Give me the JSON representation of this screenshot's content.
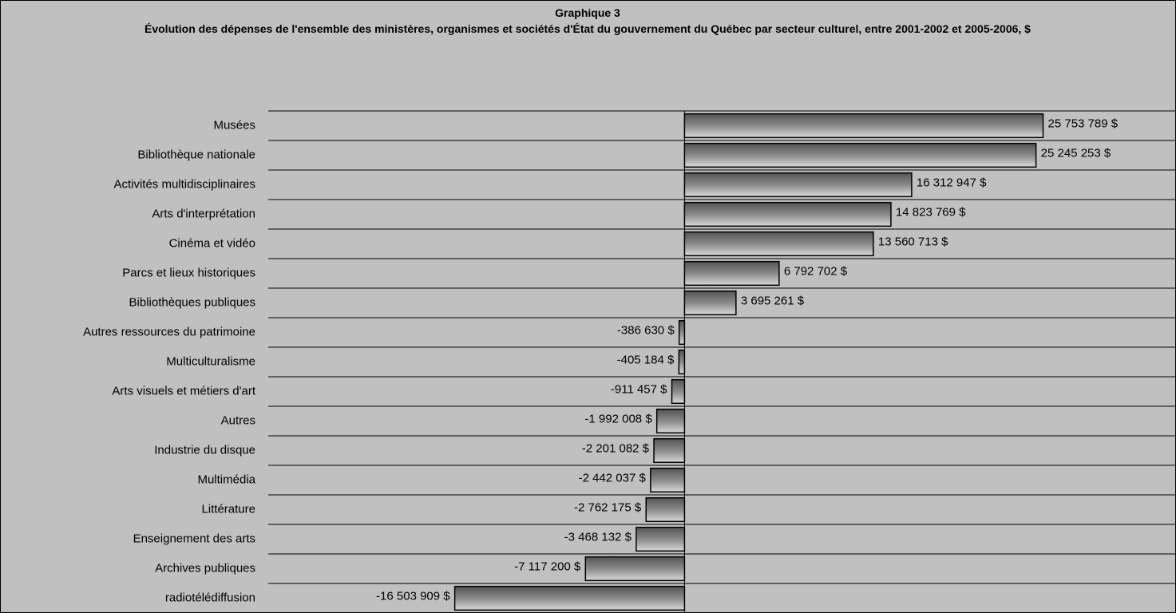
{
  "chart_data": {
    "type": "hbar",
    "title": "Graphique 3",
    "subtitle": "Évolution des dépenses de l'ensemble des ministères, organismes et sociétés d'État du gouvernement du Québec par secteur culturel, entre 2001-2002 et 2005-2006, $",
    "categories": [
      "Musées",
      "Bibliothèque nationale",
      "Activités multidisciplinaires",
      "Arts d'interprétation",
      "Cinéma et vidéo",
      "Parcs et lieux historiques",
      "Bibliothèques publiques",
      "Autres ressources du patrimoine",
      "Multiculturalisme",
      "Arts visuels et métiers d'art",
      "Autres",
      "Industrie du disque",
      "Multimédia",
      "Littérature",
      "Enseignement des arts",
      "Archives publiques",
      "radiotélédiffusion"
    ],
    "values": [
      25753789,
      25245253,
      16312947,
      14823769,
      13560713,
      6792702,
      3695261,
      -386630,
      -405184,
      -911457,
      -1992008,
      -2201082,
      -2442037,
      -2762175,
      -3468132,
      -7117200,
      -16503909
    ],
    "value_labels": [
      "25 753 789 $",
      "25 245 253 $",
      "16 312 947 $",
      "14 823 769 $",
      "13 560 713 $",
      "6 792 702 $",
      "3 695 261 $",
      "-386 630 $",
      "-405 184 $",
      "-911 457 $",
      "-1 992 008 $",
      "-2 201 082 $",
      "-2 442 037 $",
      "-2 762 175 $",
      "-3 468 132 $",
      "-7 117 200 $",
      "-16 503 909 $"
    ],
    "color": "#808080",
    "xlim": [
      -29900000,
      35300000
    ]
  }
}
